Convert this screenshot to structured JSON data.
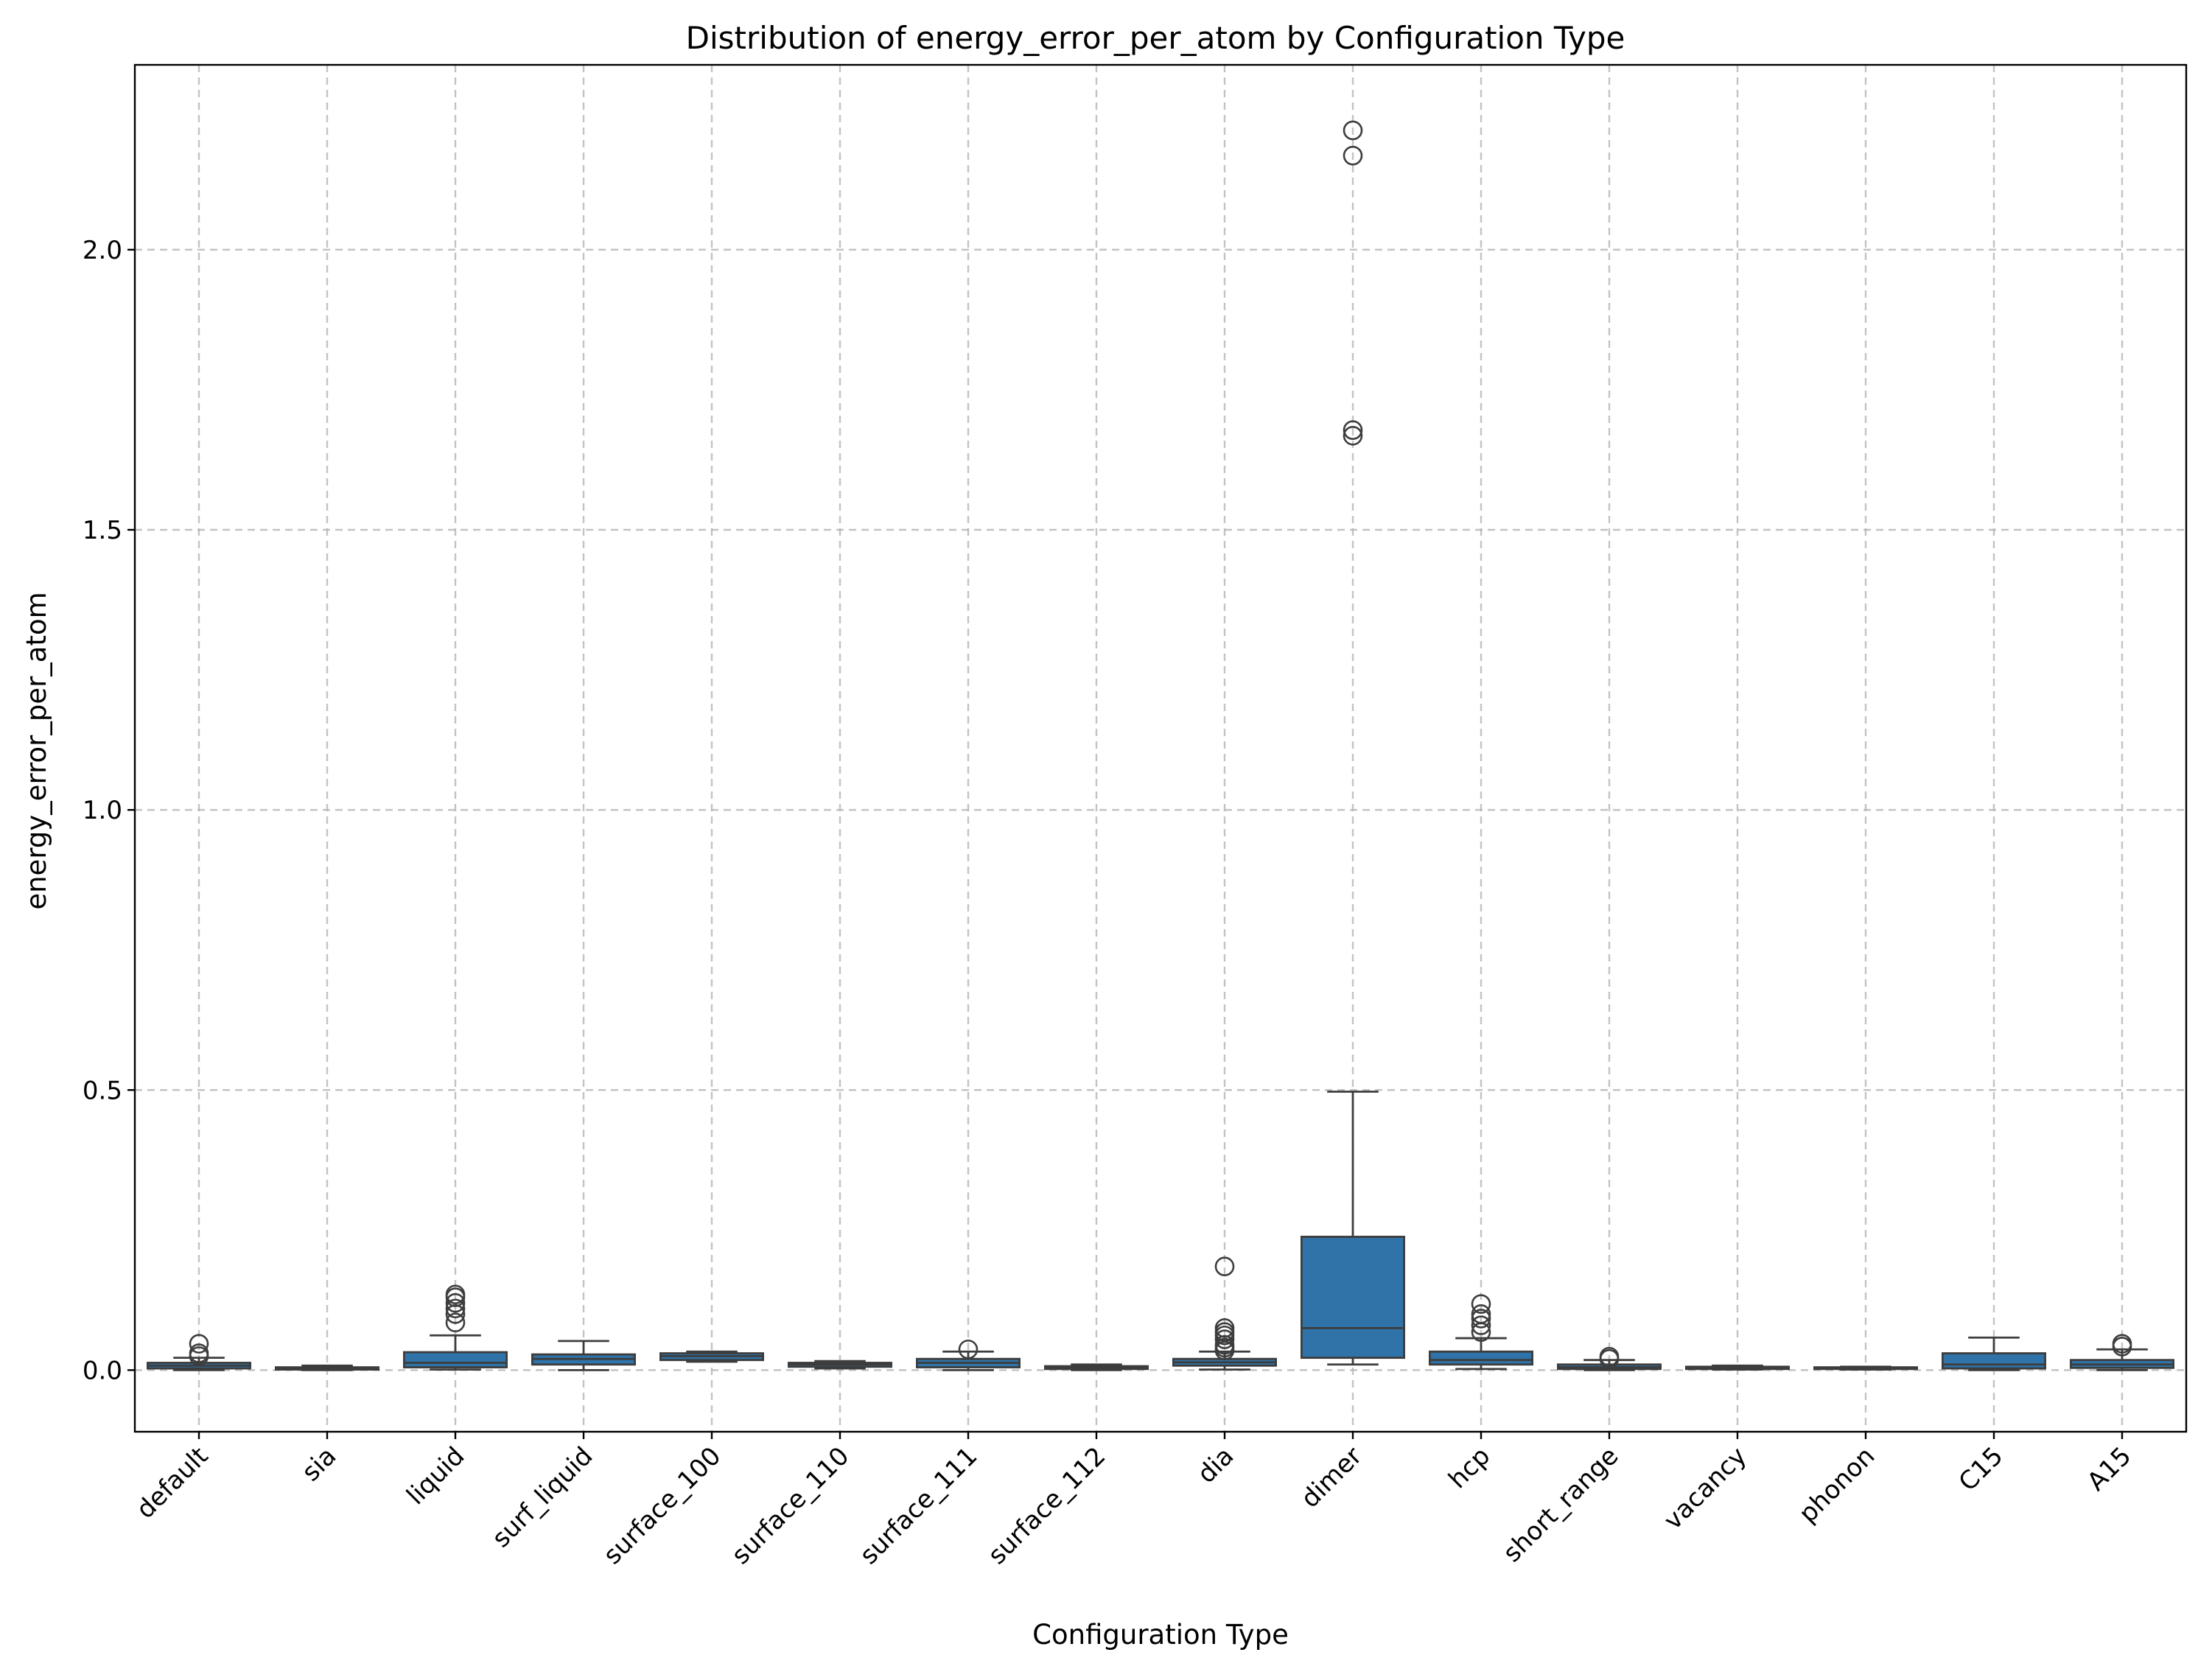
{
  "chart_data": {
    "type": "box",
    "title": "Distribution of energy_error_per_atom by Configuration Type",
    "xlabel": "Configuration Type",
    "ylabel": "energy_error_per_atom",
    "ylim": [
      -0.11,
      2.33
    ],
    "yticks": [
      0.0,
      0.5,
      1.0,
      1.5,
      2.0
    ],
    "ytick_labels": [
      "0.0",
      "0.5",
      "1.0",
      "1.5",
      "2.0"
    ],
    "grid": true,
    "box_color": "#2f73a8",
    "edge_color": "#3d3d3d",
    "categories": [
      "default",
      "sia",
      "liquid",
      "surf_liquid",
      "surface_100",
      "surface_110",
      "surface_111",
      "surface_112",
      "dia",
      "dimer",
      "hcp",
      "short_range",
      "vacancy",
      "phonon",
      "C15",
      "A15"
    ],
    "boxes": [
      {
        "category": "default",
        "whislo": 0.0,
        "q1": 0.003,
        "median": 0.008,
        "q3": 0.013,
        "whishi": 0.022,
        "fliers": [
          0.025,
          0.03,
          0.047
        ]
      },
      {
        "category": "sia",
        "whislo": 0.0,
        "q1": 0.001,
        "median": 0.003,
        "q3": 0.005,
        "whishi": 0.008,
        "fliers": []
      },
      {
        "category": "liquid",
        "whislo": 0.001,
        "q1": 0.005,
        "median": 0.013,
        "q3": 0.032,
        "whishi": 0.062,
        "fliers": [
          0.085,
          0.1,
          0.11,
          0.12,
          0.13,
          0.135
        ]
      },
      {
        "category": "surf_liquid",
        "whislo": 0.0,
        "q1": 0.01,
        "median": 0.02,
        "q3": 0.028,
        "whishi": 0.052,
        "fliers": []
      },
      {
        "category": "surface_100",
        "whislo": 0.015,
        "q1": 0.018,
        "median": 0.025,
        "q3": 0.03,
        "whishi": 0.033,
        "fliers": []
      },
      {
        "category": "surface_110",
        "whislo": 0.003,
        "q1": 0.006,
        "median": 0.01,
        "q3": 0.013,
        "whishi": 0.016,
        "fliers": []
      },
      {
        "category": "surface_111",
        "whislo": 0.0,
        "q1": 0.005,
        "median": 0.013,
        "q3": 0.02,
        "whishi": 0.033,
        "fliers": [
          0.037
        ]
      },
      {
        "category": "surface_112",
        "whislo": 0.0,
        "q1": 0.002,
        "median": 0.005,
        "q3": 0.007,
        "whishi": 0.01,
        "fliers": []
      },
      {
        "category": "dia",
        "whislo": 0.001,
        "q1": 0.008,
        "median": 0.014,
        "q3": 0.02,
        "whishi": 0.033,
        "fliers": [
          0.035,
          0.04,
          0.045,
          0.055,
          0.062,
          0.068,
          0.075,
          0.185
        ]
      },
      {
        "category": "dimer",
        "whislo": 0.01,
        "q1": 0.022,
        "median": 0.075,
        "q3": 0.238,
        "whishi": 0.497,
        "fliers": [
          1.668,
          1.678,
          2.168,
          2.213
        ]
      },
      {
        "category": "hcp",
        "whislo": 0.002,
        "q1": 0.01,
        "median": 0.018,
        "q3": 0.033,
        "whishi": 0.057,
        "fliers": [
          0.068,
          0.08,
          0.092,
          0.1,
          0.118
        ]
      },
      {
        "category": "short_range",
        "whislo": 0.0,
        "q1": 0.002,
        "median": 0.005,
        "q3": 0.01,
        "whishi": 0.018,
        "fliers": [
          0.02,
          0.024
        ]
      },
      {
        "category": "vacancy",
        "whislo": 0.001,
        "q1": 0.002,
        "median": 0.004,
        "q3": 0.006,
        "whishi": 0.008,
        "fliers": []
      },
      {
        "category": "phonon",
        "whislo": 0.001,
        "q1": 0.002,
        "median": 0.003,
        "q3": 0.005,
        "whishi": 0.006,
        "fliers": []
      },
      {
        "category": "C15",
        "whislo": 0.0,
        "q1": 0.003,
        "median": 0.01,
        "q3": 0.03,
        "whishi": 0.058,
        "fliers": []
      },
      {
        "category": "A15",
        "whislo": 0.0,
        "q1": 0.004,
        "median": 0.01,
        "q3": 0.018,
        "whishi": 0.037,
        "fliers": [
          0.042,
          0.047
        ]
      }
    ]
  }
}
